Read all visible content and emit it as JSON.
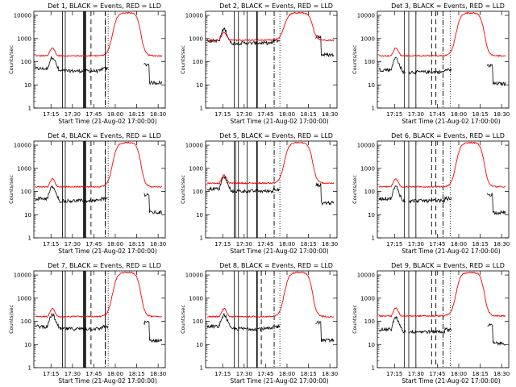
{
  "chart_data": {
    "type": "line",
    "y_scale": "log",
    "ylabel": "Counts/sec",
    "xlabel": "Start Time (21-Aug-02 17:00:00)",
    "x_ticks": [
      "17:15",
      "17:30",
      "17:45",
      "18:00",
      "18:15",
      "18:30"
    ],
    "y_ticks": [
      "1",
      "10",
      "100",
      "1000",
      "10000"
    ],
    "ylim": [
      1,
      15000
    ],
    "x_range_minutes": [
      3,
      42
    ],
    "series_colors": {
      "Events": "#000000",
      "LLD": "#ff0000"
    },
    "panels": [
      {
        "title": "Det 1, BLACK = Events, RED = LLD",
        "events_base": 50,
        "lld_base": 180,
        "lld_peak": 13000,
        "events_gap": false,
        "solid_lines": [
          9,
          11,
          24,
          25
        ],
        "dashed_lines": [
          29,
          39
        ],
        "dashdot_lines": [
          39
        ],
        "dotted_lines": [
          41
        ]
      },
      {
        "title": "Det 2, BLACK = Events, RED = LLD",
        "events_base": 800,
        "lld_base": 850,
        "lld_peak": 13000,
        "events_gap": false,
        "solid_lines": [
          9,
          12,
          18,
          25
        ],
        "dashed_lines": [],
        "dashdot_lines": [
          37
        ],
        "dotted_lines": [
          41
        ]
      },
      {
        "title": "Det 3, BLACK = Events, RED = LLD",
        "events_base": 45,
        "lld_base": 180,
        "lld_peak": 13000,
        "events_gap": true,
        "solid_lines": [
          8,
          11,
          16
        ],
        "dashed_lines": [
          27,
          30
        ],
        "dashdot_lines": [
          35
        ],
        "dotted_lines": [
          40
        ]
      },
      {
        "title": "Det 4, BLACK = Events, RED = LLD",
        "events_base": 50,
        "lld_base": 160,
        "lld_peak": 13000,
        "events_gap": false,
        "solid_lines": [
          9,
          11,
          24,
          25
        ],
        "dashed_lines": [
          29,
          39
        ],
        "dashdot_lines": [
          39
        ],
        "dotted_lines": [
          41
        ]
      },
      {
        "title": "Det 5, BLACK = Events, RED = LLD",
        "events_base": 130,
        "lld_base": 230,
        "lld_peak": 13000,
        "events_gap": false,
        "solid_lines": [
          9,
          10,
          12,
          18,
          25
        ],
        "dashed_lines": [],
        "dashdot_lines": [
          37
        ],
        "dotted_lines": [
          41
        ]
      },
      {
        "title": "Det 6, BLACK = Events, RED = LLD",
        "events_base": 50,
        "lld_base": 160,
        "lld_peak": 13000,
        "events_gap": true,
        "solid_lines": [
          8,
          11,
          16
        ],
        "dashed_lines": [
          27,
          30
        ],
        "dashdot_lines": [
          35
        ],
        "dotted_lines": [
          40
        ]
      },
      {
        "title": "Det 7, BLACK = Events, RED = LLD",
        "events_base": 60,
        "lld_base": 160,
        "lld_peak": 13000,
        "events_gap": false,
        "solid_lines": [
          9,
          11,
          24,
          25
        ],
        "dashed_lines": [
          29,
          39
        ],
        "dashdot_lines": [
          39
        ],
        "dotted_lines": [
          41
        ]
      },
      {
        "title": "Det 8, BLACK = Events, RED = LLD",
        "events_base": 60,
        "lld_base": 160,
        "lld_peak": 13000,
        "events_gap": false,
        "solid_lines": [
          9,
          12,
          18,
          25
        ],
        "dashed_lines": [
          28
        ],
        "dashdot_lines": [
          37
        ],
        "dotted_lines": [
          41
        ]
      },
      {
        "title": "Det 9, BLACK = Events, RED = LLD",
        "events_base": 45,
        "lld_base": 170,
        "lld_peak": 13000,
        "events_gap": true,
        "solid_lines": [
          8,
          11,
          16
        ],
        "dashed_lines": [
          27,
          30
        ],
        "dashdot_lines": [
          35
        ],
        "dotted_lines": [
          40
        ]
      }
    ]
  }
}
